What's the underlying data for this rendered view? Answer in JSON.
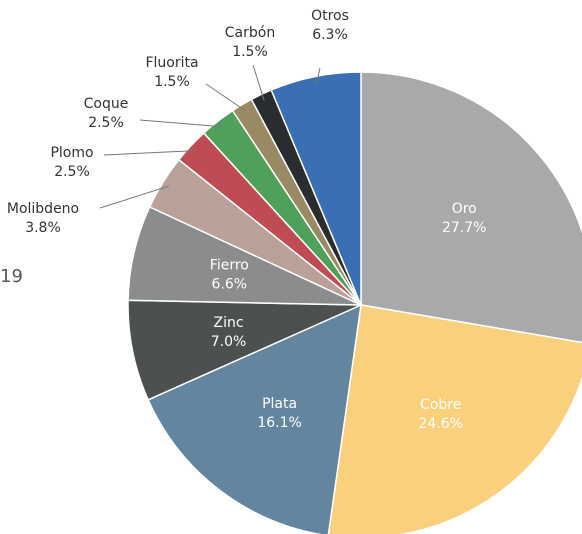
{
  "chart_data": {
    "type": "pie",
    "annotation": "19",
    "categories": [
      "Oro",
      "Cobre",
      "Plata",
      "Zinc",
      "Fierro",
      "Molibdeno",
      "Plomo",
      "Coque",
      "Fluorita",
      "Carbón",
      "Otros"
    ],
    "values": [
      27.7,
      24.6,
      16.1,
      7.0,
      6.6,
      3.8,
      2.5,
      2.5,
      1.5,
      1.5,
      6.3
    ],
    "value_labels": [
      "27.7%",
      "24.6%",
      "16.1%",
      "7.0%",
      "6.6%",
      "3.8%",
      "2.5%",
      "2.5%",
      "1.5%",
      "1.5%",
      "6.3%"
    ],
    "colors": [
      "#a7a9ab",
      "#fbd07c",
      "#6385a0",
      "#4d5050",
      "#8a8c8e",
      "#b9a199",
      "#bf4c54",
      "#4fa05a",
      "#998a64",
      "#2a2d30",
      "#3a6fb3"
    ]
  }
}
